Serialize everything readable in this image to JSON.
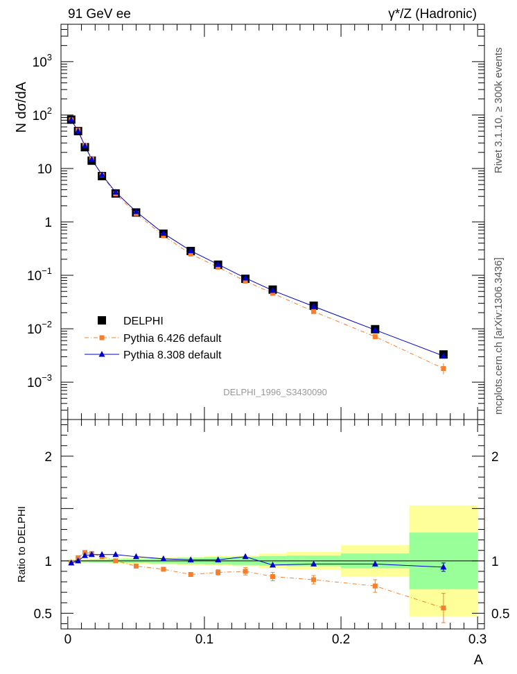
{
  "header": {
    "left": "91 GeV ee",
    "right": "γ*/Z (Hadronic)",
    "side_top": "Rivet 3.1.10, ≥ 300k events",
    "side_bottom": "mcplots.cern.ch [arXiv:1306.3436]",
    "watermark": "DELPHI_1996_S3430090"
  },
  "chart_data": [
    {
      "type": "scatter",
      "name": "main",
      "ylabel": "N dσ/dA",
      "yscale": "log",
      "xlim": [
        -0.005,
        0.305
      ],
      "ylim": [
        0.0002,
        5000
      ],
      "yticks": [
        {
          "v": 1000,
          "base": "10",
          "exp": "3"
        },
        {
          "v": 100,
          "base": "10",
          "exp": "2"
        },
        {
          "v": 10,
          "base": "10",
          "exp": ""
        },
        {
          "v": 1,
          "base": "1",
          "exp": ""
        },
        {
          "v": 0.1,
          "base": "10",
          "exp": "−1"
        },
        {
          "v": 0.01,
          "base": "10",
          "exp": "−2"
        },
        {
          "v": 0.001,
          "base": "10",
          "exp": "−3"
        }
      ],
      "legend_position": "bottom-left",
      "legend": [
        {
          "label": "DELPHI",
          "marker": "square"
        },
        {
          "label": "Pythia 6.426 default",
          "marker": "small-square"
        },
        {
          "label": "Pythia 8.308 default",
          "marker": "triangle"
        }
      ],
      "x": [
        0.0025,
        0.0075,
        0.0125,
        0.0175,
        0.025,
        0.035,
        0.05,
        0.07,
        0.09,
        0.11,
        0.13,
        0.15,
        0.18,
        0.225,
        0.275
      ],
      "series": [
        {
          "name": "DELPHI",
          "color": "#000000",
          "values": [
            82,
            50,
            25,
            14,
            7.2,
            3.4,
            1.5,
            0.6,
            0.285,
            0.158,
            0.086,
            0.054,
            0.027,
            0.0098,
            0.0033
          ]
        },
        {
          "name": "Pythia 6.426 default",
          "color": "#f57f2b",
          "values": [
            81,
            52,
            27,
            15,
            7.5,
            3.35,
            1.43,
            0.55,
            0.25,
            0.142,
            0.078,
            0.046,
            0.021,
            0.0071,
            0.0018
          ]
        },
        {
          "name": "Pythia 8.308 default",
          "color": "#0000cc",
          "values": [
            81,
            50,
            26.5,
            14.8,
            7.6,
            3.6,
            1.56,
            0.61,
            0.288,
            0.16,
            0.089,
            0.052,
            0.0262,
            0.0095,
            0.0031
          ]
        }
      ]
    },
    {
      "type": "scatter",
      "name": "ratio",
      "ylabel": "Ratio to DELPHI",
      "xlabel": "A",
      "xlim": [
        -0.005,
        0.305
      ],
      "ylim": [
        0.35,
        2.35
      ],
      "yticks": [
        0.5,
        1,
        2
      ],
      "ytick_labels": [
        "0.5",
        "1",
        "2"
      ],
      "xticks": [
        0,
        0.1,
        0.2,
        0.3
      ],
      "xtick_labels": [
        "0",
        "0.1",
        "0.2",
        "0.3"
      ],
      "x": [
        0.0025,
        0.0075,
        0.0125,
        0.0175,
        0.025,
        0.035,
        0.05,
        0.07,
        0.09,
        0.11,
        0.13,
        0.15,
        0.18,
        0.225,
        0.275
      ],
      "bins": [
        [
          0,
          0.005
        ],
        [
          0.005,
          0.01
        ],
        [
          0.01,
          0.015
        ],
        [
          0.015,
          0.02
        ],
        [
          0.02,
          0.03
        ],
        [
          0.03,
          0.04
        ],
        [
          0.04,
          0.06
        ],
        [
          0.06,
          0.08
        ],
        [
          0.08,
          0.1
        ],
        [
          0.1,
          0.12
        ],
        [
          0.12,
          0.14
        ],
        [
          0.14,
          0.16
        ],
        [
          0.16,
          0.2
        ],
        [
          0.2,
          0.25
        ],
        [
          0.25,
          0.3
        ]
      ],
      "band_outer_yellow": [
        0.015,
        0.015,
        0.015,
        0.02,
        0.02,
        0.025,
        0.03,
        0.035,
        0.04,
        0.045,
        0.05,
        0.07,
        0.085,
        0.15,
        0.53
      ],
      "band_inner_green": [
        0.01,
        0.01,
        0.012,
        0.013,
        0.014,
        0.017,
        0.02,
        0.025,
        0.03,
        0.035,
        0.04,
        0.045,
        0.05,
        0.07,
        0.27
      ],
      "series": [
        {
          "name": "Pythia 6.426 default",
          "color": "#f57f2b",
          "values": [
            0.98,
            1.03,
            1.08,
            1.07,
            1.04,
            1.0,
            0.95,
            0.92,
            0.87,
            0.89,
            0.9,
            0.85,
            0.82,
            0.76,
            0.55
          ],
          "errors": [
            0.01,
            0.01,
            0.012,
            0.013,
            0.014,
            0.016,
            0.015,
            0.015,
            0.02,
            0.025,
            0.035,
            0.04,
            0.04,
            0.06,
            0.14
          ]
        },
        {
          "name": "Pythia 8.308 default",
          "color": "#0000cc",
          "values": [
            0.98,
            1.0,
            1.05,
            1.06,
            1.06,
            1.06,
            1.04,
            1.02,
            1.01,
            1.01,
            1.04,
            0.96,
            0.97,
            0.97,
            0.94
          ],
          "errors": [
            0.005,
            0.005,
            0.006,
            0.006,
            0.007,
            0.008,
            0.008,
            0.009,
            0.01,
            0.012,
            0.015,
            0.017,
            0.018,
            0.02,
            0.04
          ]
        }
      ]
    }
  ]
}
